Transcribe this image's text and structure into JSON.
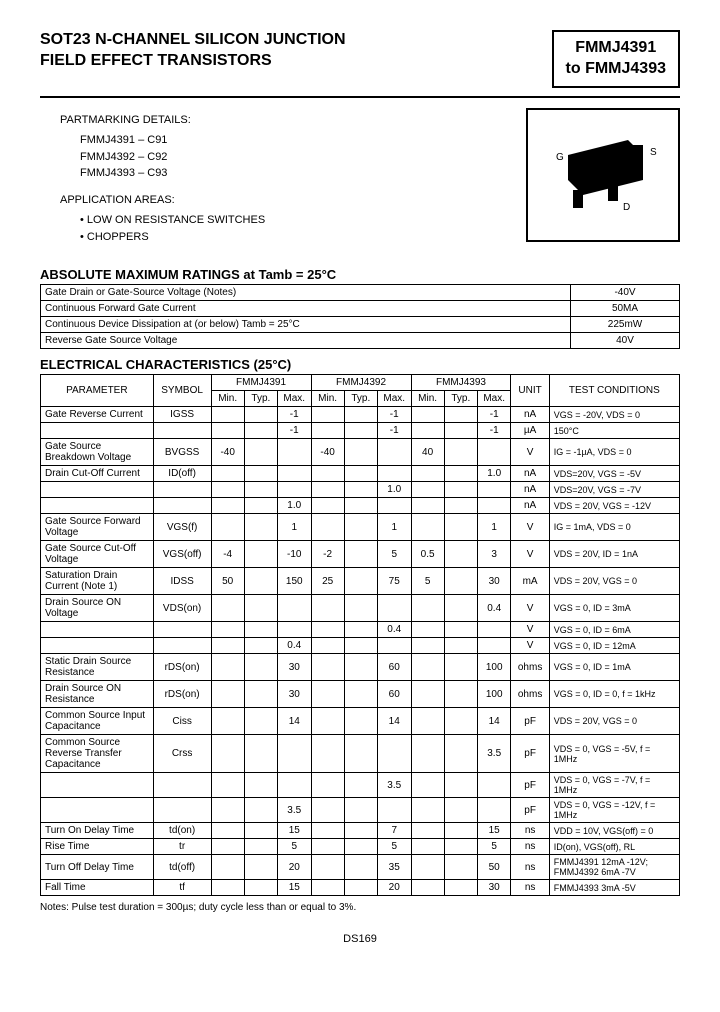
{
  "header": {
    "title_line1": "SOT23 N-CHANNEL SILICON JUNCTION",
    "title_line2": "FIELD EFFECT TRANSISTORS",
    "partbox_line1": "FMMJ4391",
    "partbox_line2": "to FMMJ4393"
  },
  "partmarking": {
    "heading": "PARTMARKING DETAILS:",
    "items": [
      "FMMJ4391 – C91",
      "FMMJ4392 – C92",
      "FMMJ4393 – C93"
    ]
  },
  "applications": {
    "heading": "APPLICATION AREAS:",
    "items": [
      "LOW ON RESISTANCE SWITCHES",
      "CHOPPERS"
    ]
  },
  "package_labels": {
    "g": "G",
    "s": "S",
    "d": "D"
  },
  "ratings": {
    "heading": "ABSOLUTE MAXIMUM RATINGS at Tamb = 25°C",
    "rows": [
      {
        "label": "Gate Drain or Gate-Source Voltage (Notes)",
        "value": "-40V"
      },
      {
        "label": "Continuous Forward Gate Current",
        "value": "50MA"
      },
      {
        "label": "Continuous Device Dissipation at (or below) Tamb = 25°C",
        "value": "225mW"
      },
      {
        "label": "Reverse Gate Source Voltage",
        "value": "40V"
      }
    ]
  },
  "ec": {
    "heading": "ELECTRICAL CHARACTERISTICS (25°C)",
    "col_param": "PARAMETER",
    "col_sym": "SYMBOL",
    "col_p1": "FMMJ4391",
    "col_p2": "FMMJ4392",
    "col_p3": "FMMJ4393",
    "col_unit": "UNIT",
    "col_cond": "TEST CONDITIONS",
    "sub_min": "Min.",
    "sub_typ": "Typ.",
    "sub_max": "Max."
  },
  "rows": {
    "r1": {
      "p": "Gate Reverse Current",
      "s": "IGSS",
      "a": [
        "",
        "",
        "-1"
      ],
      "b": [
        "",
        "",
        "-1"
      ],
      "c": [
        "",
        "",
        "-1"
      ],
      "u": "nA",
      "cond": "VGS = -20V, VDS = 0"
    },
    "r1b": {
      "p": "",
      "s": "",
      "a": [
        "",
        "",
        "-1"
      ],
      "b": [
        "",
        "",
        "-1"
      ],
      "c": [
        "",
        "",
        "-1"
      ],
      "u": "µA",
      "cond": "150°C"
    },
    "r2": {
      "p": "Gate Source Breakdown Voltage",
      "s": "BVGSS",
      "a": [
        "-40",
        "",
        ""
      ],
      "b": [
        "-40",
        "",
        ""
      ],
      "c": [
        "40",
        "",
        ""
      ],
      "u": "V",
      "cond": "IG = -1µA, VDS = 0"
    },
    "r3": {
      "p": "Drain Cut-Off Current",
      "s": "ID(off)",
      "a": [
        "",
        "",
        ""
      ],
      "b": [
        "",
        "",
        ""
      ],
      "c": [
        "",
        "",
        "1.0"
      ],
      "u": "nA",
      "cond": "VDS=20V, VGS = -5V"
    },
    "r3b": {
      "p": "",
      "s": "",
      "a": [
        "",
        "",
        ""
      ],
      "b": [
        "",
        "",
        "1.0"
      ],
      "c": [
        "",
        "",
        ""
      ],
      "u": "nA",
      "cond": "VDS=20V, VGS = -7V"
    },
    "r3c": {
      "p": "",
      "s": "",
      "a": [
        "",
        "",
        "1.0"
      ],
      "b": [
        "",
        "",
        ""
      ],
      "c": [
        "",
        "",
        ""
      ],
      "u": "nA",
      "cond": "VDS = 20V, VGS = -12V"
    },
    "r4": {
      "p": "Gate Source Forward Voltage",
      "s": "VGS(f)",
      "a": [
        "",
        "",
        "1"
      ],
      "b": [
        "",
        "",
        "1"
      ],
      "c": [
        "",
        "",
        "1"
      ],
      "u": "V",
      "cond": "IG = 1mA, VDS = 0"
    },
    "r5": {
      "p": "Gate Source Cut-Off Voltage",
      "s": "VGS(off)",
      "a": [
        "-4",
        "",
        "-10"
      ],
      "b": [
        "-2",
        "",
        "5"
      ],
      "c": [
        "0.5",
        "",
        "3"
      ],
      "u": "V",
      "cond": "VDS = 20V, ID = 1nA"
    },
    "r6": {
      "p": "Saturation Drain Current (Note 1)",
      "s": "IDSS",
      "a": [
        "50",
        "",
        "150"
      ],
      "b": [
        "25",
        "",
        "75"
      ],
      "c": [
        "5",
        "",
        "30"
      ],
      "u": "mA",
      "cond": "VDS = 20V, VGS = 0"
    },
    "r7": {
      "p": "Drain Source ON Voltage",
      "s": "VDS(on)",
      "a": [
        "",
        "",
        ""
      ],
      "b": [
        "",
        "",
        ""
      ],
      "c": [
        "",
        "",
        "0.4"
      ],
      "u": "V",
      "cond": "VGS = 0, ID = 3mA"
    },
    "r7b": {
      "p": "",
      "s": "",
      "a": [
        "",
        "",
        ""
      ],
      "b": [
        "",
        "",
        "0.4"
      ],
      "c": [
        "",
        "",
        ""
      ],
      "u": "V",
      "cond": "VGS = 0, ID = 6mA"
    },
    "r7c": {
      "p": "",
      "s": "",
      "a": [
        "",
        "",
        "0.4"
      ],
      "b": [
        "",
        "",
        ""
      ],
      "c": [
        "",
        "",
        ""
      ],
      "u": "V",
      "cond": "VGS = 0, ID = 12mA"
    },
    "r8": {
      "p": "Static Drain Source Resistance",
      "s": "rDS(on)",
      "a": [
        "",
        "",
        "30"
      ],
      "b": [
        "",
        "",
        "60"
      ],
      "c": [
        "",
        "",
        "100"
      ],
      "u": "ohms",
      "cond": "VGS = 0, ID = 1mA"
    },
    "r9": {
      "p": "Drain Source ON Resistance",
      "s": "rDS(on)",
      "a": [
        "",
        "",
        "30"
      ],
      "b": [
        "",
        "",
        "60"
      ],
      "c": [
        "",
        "",
        "100"
      ],
      "u": "ohms",
      "cond": "VGS = 0, ID = 0, f = 1kHz"
    },
    "r10": {
      "p": "Common Source Input Capacitance",
      "s": "Ciss",
      "a": [
        "",
        "",
        "14"
      ],
      "b": [
        "",
        "",
        "14"
      ],
      "c": [
        "",
        "",
        "14"
      ],
      "u": "pF",
      "cond": "VDS = 20V, VGS = 0"
    },
    "r11": {
      "p": "Common Source Reverse Transfer Capacitance",
      "s": "Crss",
      "a": [
        "",
        "",
        ""
      ],
      "b": [
        "",
        "",
        ""
      ],
      "c": [
        "",
        "",
        "3.5"
      ],
      "u": "pF",
      "cond": "VDS = 0, VGS = -5V, f = 1MHz"
    },
    "r11b": {
      "p": "",
      "s": "",
      "a": [
        "",
        "",
        ""
      ],
      "b": [
        "",
        "",
        "3.5"
      ],
      "c": [
        "",
        "",
        ""
      ],
      "u": "pF",
      "cond": "VDS = 0, VGS = -7V, f = 1MHz"
    },
    "r11c": {
      "p": "",
      "s": "",
      "a": [
        "",
        "",
        "3.5"
      ],
      "b": [
        "",
        "",
        ""
      ],
      "c": [
        "",
        "",
        ""
      ],
      "u": "pF",
      "cond": "VDS = 0, VGS = -12V, f = 1MHz"
    },
    "r12": {
      "p": "Turn On Delay Time",
      "s": "td(on)",
      "a": [
        "",
        "",
        "15"
      ],
      "b": [
        "",
        "",
        "7"
      ],
      "c": [
        "",
        "",
        "15"
      ],
      "u": "ns",
      "cond": "VDD = 10V, VGS(off) = 0"
    },
    "r13": {
      "p": "Rise Time",
      "s": "tr",
      "a": [
        "",
        "",
        "5"
      ],
      "b": [
        "",
        "",
        "5"
      ],
      "c": [
        "",
        "",
        "5"
      ],
      "u": "ns",
      "cond": "ID(on), VGS(off), RL"
    },
    "r14": {
      "p": "Turn Off Delay Time",
      "s": "td(off)",
      "a": [
        "",
        "",
        "20"
      ],
      "b": [
        "",
        "",
        "35"
      ],
      "c": [
        "",
        "",
        "50"
      ],
      "u": "ns",
      "cond": "FMMJ4391 12mA -12V; FMMJ4392 6mA -7V"
    },
    "r15": {
      "p": "Fall Time",
      "s": "tf",
      "a": [
        "",
        "",
        "15"
      ],
      "b": [
        "",
        "",
        "20"
      ],
      "c": [
        "",
        "",
        "30"
      ],
      "u": "ns",
      "cond": "FMMJ4393 3mA -5V"
    }
  },
  "notes": "Notes: Pulse test duration = 300µs; duty cycle less than or equal to 3%.",
  "footer": "DS169"
}
